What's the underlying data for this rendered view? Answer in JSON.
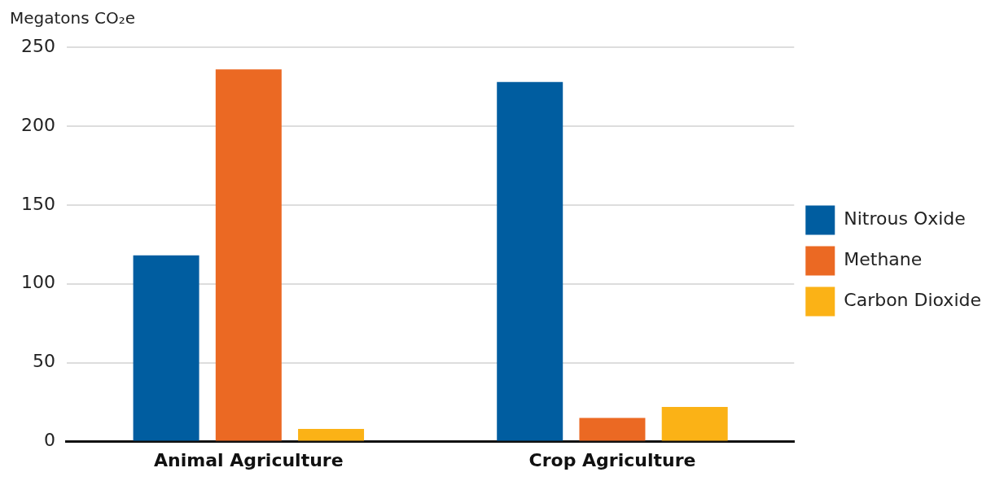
{
  "chart_data": {
    "type": "bar",
    "ylabel": "Megatons CO₂e",
    "categories": [
      "Animal Agriculture",
      "Crop Agriculture"
    ],
    "series": [
      {
        "name": "Nitrous Oxide",
        "color": "#005da0",
        "values": [
          118,
          228
        ]
      },
      {
        "name": "Methane",
        "color": "#eb6923",
        "values": [
          236,
          15
        ]
      },
      {
        "name": "Carbon Dioxide",
        "color": "#fbb216",
        "values": [
          8,
          22
        ]
      }
    ],
    "ylim": [
      0,
      250
    ],
    "yticks": [
      0,
      50,
      100,
      150,
      200,
      250
    ],
    "grid": "y",
    "legend": "right"
  }
}
